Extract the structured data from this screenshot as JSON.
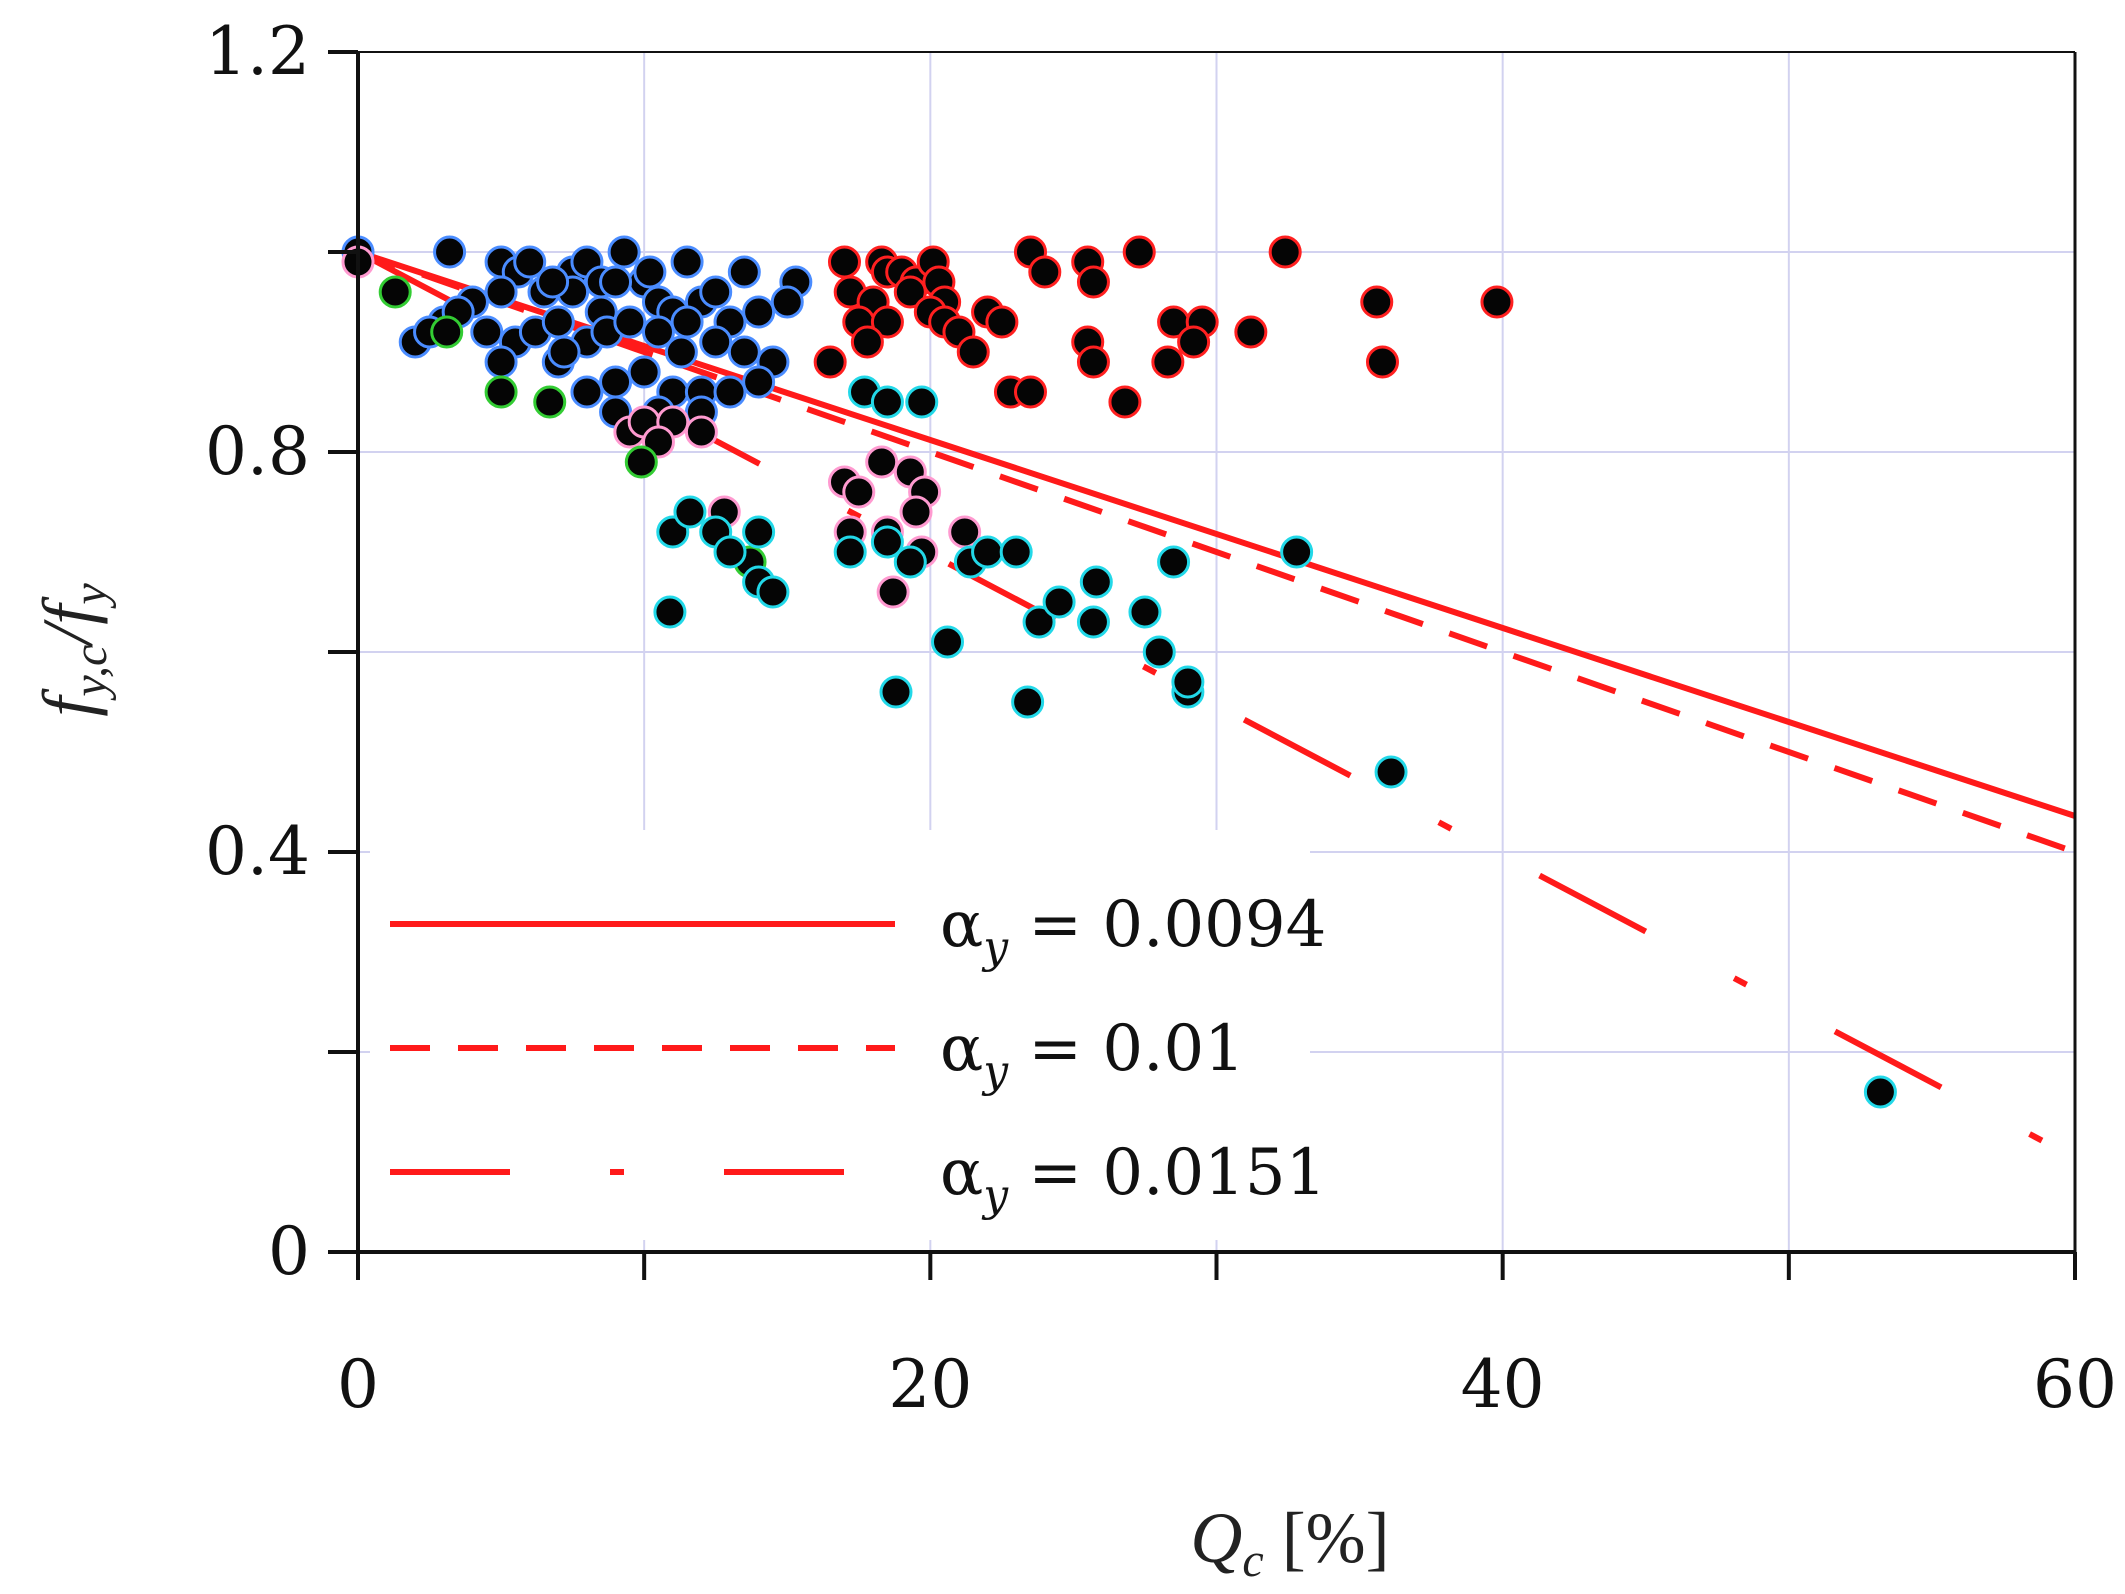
{
  "chart_data": {
    "type": "scatter",
    "title": "",
    "xlabel": "Q",
    "xlabel_sub": "c",
    "xlabel_unit": " [%]",
    "ylabel_f": "f",
    "ylabel_sub1": "y,c",
    "ylabel_slash": "/f",
    "ylabel_sub2": "y",
    "xlim": [
      0,
      60
    ],
    "ylim": [
      0,
      1.2
    ],
    "xticks_labeled": [
      0,
      20,
      40,
      60
    ],
    "xtick_labels": [
      "0",
      "20",
      "40",
      "60"
    ],
    "xticks_minor": [
      10,
      30,
      50
    ],
    "yticks_labeled": [
      0,
      0.4,
      0.8,
      1.2
    ],
    "ytick_labels": [
      "0",
      "0.4",
      "0.8",
      "1.2"
    ],
    "yticks_minor": [
      0.2,
      0.6,
      1.0
    ],
    "grid": true,
    "legend_position": "bottom-left",
    "lines": [
      {
        "name": "α_y = 0.0094",
        "alpha_label": "α",
        "alpha_sub": "y",
        "value_text": " = 0.0094",
        "style": "solid",
        "color": "#ff1a1a",
        "x": [
          0,
          60
        ],
        "y": [
          1.0,
          0.436
        ]
      },
      {
        "name": "α_y = 0.01",
        "alpha_label": "α",
        "alpha_sub": "y",
        "value_text": " = 0.01",
        "style": "dashed",
        "color": "#ff1a1a",
        "x": [
          0,
          60
        ],
        "y": [
          1.0,
          0.4
        ]
      },
      {
        "name": "α_y = 0.0151",
        "alpha_label": "α",
        "alpha_sub": "y",
        "value_text": " = 0.0151",
        "style": "dash-dot",
        "color": "#ff1a1a",
        "x": [
          0,
          60
        ],
        "y": [
          1.0,
          0.094
        ]
      }
    ],
    "series": [
      {
        "name": "blue-edged",
        "edge_color": "#4a8cff",
        "points": [
          [
            0,
            1.0
          ],
          [
            3.2,
            1.0
          ],
          [
            5,
            0.99
          ],
          [
            5.6,
            0.98
          ],
          [
            6,
            0.99
          ],
          [
            7.5,
            0.98
          ],
          [
            8,
            0.99
          ],
          [
            8.5,
            0.97
          ],
          [
            9.3,
            1.0
          ],
          [
            10,
            0.97
          ],
          [
            11.5,
            0.99
          ],
          [
            13.5,
            0.98
          ],
          [
            15.3,
            0.97
          ],
          [
            4,
            0.95
          ],
          [
            5,
            0.96
          ],
          [
            6.5,
            0.96
          ],
          [
            7.5,
            0.96
          ],
          [
            8.5,
            0.94
          ],
          [
            9,
            0.97
          ],
          [
            10.5,
            0.95
          ],
          [
            11,
            0.94
          ],
          [
            12,
            0.95
          ],
          [
            12.5,
            0.96
          ],
          [
            13,
            0.93
          ],
          [
            14,
            0.94
          ],
          [
            15,
            0.95
          ],
          [
            2,
            0.91
          ],
          [
            3,
            0.93
          ],
          [
            3.5,
            0.94
          ],
          [
            4.5,
            0.92
          ],
          [
            5.5,
            0.91
          ],
          [
            6.2,
            0.92
          ],
          [
            7,
            0.93
          ],
          [
            8,
            0.91
          ],
          [
            8.7,
            0.92
          ],
          [
            9.5,
            0.93
          ],
          [
            10.5,
            0.92
          ],
          [
            11.5,
            0.93
          ],
          [
            12.5,
            0.91
          ],
          [
            13.5,
            0.9
          ],
          [
            14.5,
            0.89
          ],
          [
            2.5,
            0.92
          ],
          [
            5,
            0.89
          ],
          [
            7,
            0.89
          ],
          [
            8,
            0.86
          ],
          [
            9,
            0.87
          ],
          [
            10,
            0.88
          ],
          [
            11,
            0.86
          ],
          [
            12,
            0.86
          ],
          [
            13,
            0.86
          ],
          [
            14,
            0.87
          ],
          [
            10.5,
            0.84
          ],
          [
            12,
            0.84
          ],
          [
            9,
            0.84
          ],
          [
            7.2,
            0.9
          ],
          [
            11.3,
            0.9
          ],
          [
            6.8,
            0.97
          ],
          [
            10.2,
            0.98
          ]
        ]
      },
      {
        "name": "red-edged",
        "edge_color": "#ff2020",
        "points": [
          [
            17,
            0.99
          ],
          [
            18.3,
            0.99
          ],
          [
            18.5,
            0.98
          ],
          [
            19,
            0.98
          ],
          [
            19.5,
            0.97
          ],
          [
            20.1,
            0.99
          ],
          [
            20.3,
            0.97
          ],
          [
            23.5,
            1.0
          ],
          [
            24,
            0.98
          ],
          [
            25.5,
            0.99
          ],
          [
            25.7,
            0.97
          ],
          [
            27.3,
            1.0
          ],
          [
            32.4,
            1.0
          ],
          [
            17.2,
            0.96
          ],
          [
            18,
            0.95
          ],
          [
            19.3,
            0.96
          ],
          [
            20.5,
            0.95
          ],
          [
            17.5,
            0.93
          ],
          [
            18.5,
            0.93
          ],
          [
            20,
            0.94
          ],
          [
            20.5,
            0.93
          ],
          [
            21,
            0.92
          ],
          [
            22,
            0.94
          ],
          [
            22.5,
            0.93
          ],
          [
            28.5,
            0.93
          ],
          [
            29.5,
            0.93
          ],
          [
            31.2,
            0.92
          ],
          [
            35.6,
            0.95
          ],
          [
            39.8,
            0.95
          ],
          [
            16.5,
            0.89
          ],
          [
            17.8,
            0.91
          ],
          [
            21.5,
            0.9
          ],
          [
            25.5,
            0.91
          ],
          [
            25.7,
            0.89
          ],
          [
            28.3,
            0.89
          ],
          [
            29.2,
            0.91
          ],
          [
            35.8,
            0.89
          ],
          [
            22.8,
            0.86
          ],
          [
            23.5,
            0.86
          ],
          [
            26.8,
            0.85
          ]
        ]
      },
      {
        "name": "pink-edged",
        "edge_color": "#ff9ad0",
        "points": [
          [
            0,
            0.99
          ],
          [
            9.5,
            0.82
          ],
          [
            10,
            0.83
          ],
          [
            11,
            0.83
          ],
          [
            12,
            0.82
          ],
          [
            10.5,
            0.81
          ],
          [
            17,
            0.77
          ],
          [
            17.5,
            0.76
          ],
          [
            18.3,
            0.79
          ],
          [
            19.3,
            0.78
          ],
          [
            19.8,
            0.76
          ],
          [
            19.5,
            0.74
          ],
          [
            17.2,
            0.72
          ],
          [
            18.5,
            0.72
          ],
          [
            21.2,
            0.72
          ],
          [
            19.7,
            0.7
          ],
          [
            12.8,
            0.74
          ],
          [
            18.7,
            0.66
          ]
        ]
      },
      {
        "name": "green-edged",
        "edge_color": "#33cc33",
        "points": [
          [
            1.3,
            0.96
          ],
          [
            3.1,
            0.92
          ],
          [
            5,
            0.86
          ],
          [
            6.7,
            0.85
          ],
          [
            9.9,
            0.79
          ],
          [
            13.7,
            0.69
          ]
        ]
      },
      {
        "name": "cyan-edged",
        "edge_color": "#22d8e8",
        "points": [
          [
            17.7,
            0.86
          ],
          [
            18.5,
            0.85
          ],
          [
            19.7,
            0.85
          ],
          [
            11,
            0.72
          ],
          [
            11.6,
            0.74
          ],
          [
            12.5,
            0.72
          ],
          [
            13,
            0.7
          ],
          [
            14,
            0.67
          ],
          [
            14.5,
            0.66
          ],
          [
            14,
            0.72
          ],
          [
            10.9,
            0.64
          ],
          [
            17.2,
            0.7
          ],
          [
            18.5,
            0.71
          ],
          [
            19.3,
            0.69
          ],
          [
            21.4,
            0.69
          ],
          [
            22,
            0.7
          ],
          [
            23,
            0.7
          ],
          [
            23.8,
            0.63
          ],
          [
            24.5,
            0.65
          ],
          [
            25.7,
            0.63
          ],
          [
            25.8,
            0.67
          ],
          [
            27.5,
            0.64
          ],
          [
            28,
            0.6
          ],
          [
            28.5,
            0.69
          ],
          [
            29,
            0.56
          ],
          [
            29,
            0.57
          ],
          [
            32.8,
            0.7
          ],
          [
            20.6,
            0.61
          ],
          [
            18.8,
            0.56
          ],
          [
            23.4,
            0.55
          ],
          [
            36.1,
            0.48
          ],
          [
            53.2,
            0.16
          ]
        ]
      }
    ]
  }
}
